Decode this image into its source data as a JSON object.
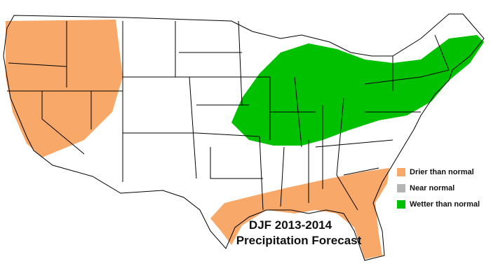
{
  "title": {
    "line1": "DJF 2013-2014",
    "line2": "Precipitation Forecast"
  },
  "legend": {
    "items": [
      {
        "label": "Drier than normal",
        "color": "#f8a868"
      },
      {
        "label": "Near normal",
        "color": "#b4b4b4"
      },
      {
        "label": "Wetter than normal",
        "color": "#00c000"
      }
    ]
  }
}
